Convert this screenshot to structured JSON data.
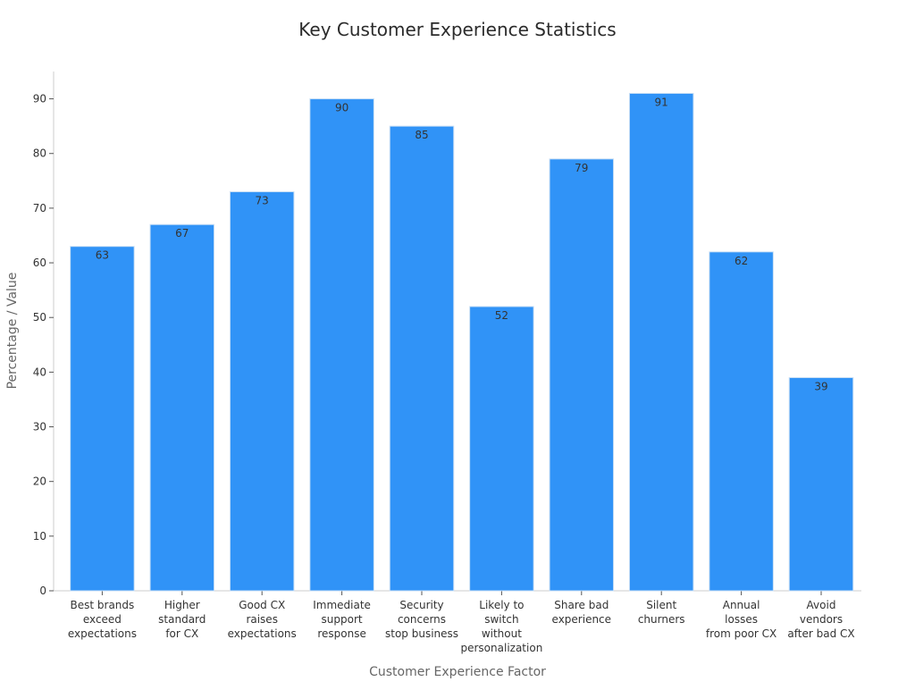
{
  "chart_data": {
    "type": "bar",
    "title": "Key Customer Experience Statistics",
    "xlabel": "Customer Experience Factor",
    "ylabel": "Percentage / Value",
    "categories": [
      [
        "Best brands",
        "exceed",
        "expectations"
      ],
      [
        "Higher",
        "standard",
        "for CX"
      ],
      [
        "Good CX",
        "raises",
        "expectations"
      ],
      [
        "Immediate",
        "support",
        "response"
      ],
      [
        "Security",
        "concerns",
        "stop business"
      ],
      [
        "Likely to",
        "switch",
        "without",
        "personalization"
      ],
      [
        "Share bad",
        "experience"
      ],
      [
        "Silent",
        "churners"
      ],
      [
        "Annual",
        "losses",
        "from poor CX"
      ],
      [
        "Avoid",
        "vendors",
        "after bad CX"
      ]
    ],
    "values": [
      63,
      67,
      73,
      90,
      85,
      52,
      79,
      91,
      62,
      39
    ],
    "ylim": [
      0,
      95
    ],
    "yticks": [
      0,
      10,
      20,
      30,
      40,
      50,
      60,
      70,
      80,
      90
    ],
    "grid": false,
    "bar_color": "#3093f7",
    "bar_edge_color": "#c9dff5"
  }
}
